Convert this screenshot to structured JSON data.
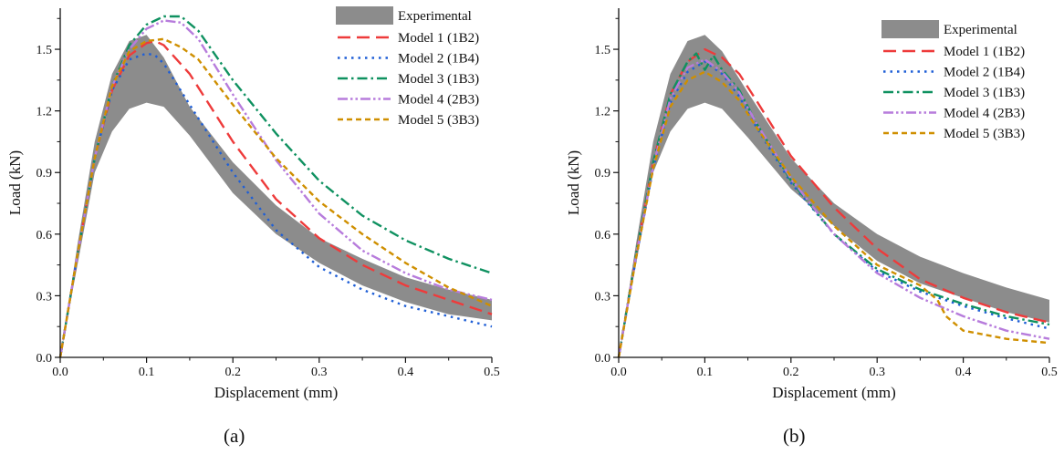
{
  "captions": [
    "(a)",
    "(b)"
  ],
  "legend_labels": {
    "experimental": "Experimental",
    "m1": "Model 1 (1B2)",
    "m2": "Model 2 (1B4)",
    "m3": "Model 3 (1B3)",
    "m4": "Model 4 (2B3)",
    "m5": "Model 5 (3B3)"
  },
  "colors": {
    "experimental": "#8c8c8c",
    "m1": "#ee3b3b",
    "m2": "#1f5fd6",
    "m3": "#0f9160",
    "m4": "#b77cdc",
    "m5": "#cf8f00"
  },
  "chart_data": [
    {
      "type": "line",
      "panel": "(a)",
      "xlabel": "Displacement (mm)",
      "ylabel": "Load (kN)",
      "xlim": [
        0,
        0.5
      ],
      "ylim": [
        0,
        1.7
      ],
      "xticks": [
        "0.0",
        "0.1",
        "0.2",
        "0.3",
        "0.4",
        "0.5"
      ],
      "yticks": [
        "0.0",
        "0.3",
        "0.6",
        "0.9",
        "1.2",
        "1.5"
      ],
      "legend": "top-right",
      "experimental_band": {
        "name": "Experimental",
        "x": [
          0,
          0.02,
          0.04,
          0.06,
          0.08,
          0.1,
          0.12,
          0.15,
          0.2,
          0.25,
          0.3,
          0.35,
          0.4,
          0.45,
          0.5
        ],
        "upper": [
          0,
          0.55,
          1.05,
          1.38,
          1.54,
          1.57,
          1.46,
          1.22,
          0.95,
          0.74,
          0.58,
          0.48,
          0.39,
          0.33,
          0.28
        ],
        "lower": [
          0,
          0.45,
          0.9,
          1.1,
          1.21,
          1.24,
          1.22,
          1.08,
          0.8,
          0.6,
          0.46,
          0.35,
          0.27,
          0.21,
          0.18
        ]
      },
      "series": [
        {
          "name": "Model 1 (1B2)",
          "key": "m1",
          "x": [
            0,
            0.02,
            0.04,
            0.06,
            0.08,
            0.1,
            0.11,
            0.12,
            0.15,
            0.2,
            0.25,
            0.3,
            0.35,
            0.4,
            0.45,
            0.5
          ],
          "y": [
            0,
            0.5,
            0.97,
            1.3,
            1.47,
            1.53,
            1.54,
            1.52,
            1.38,
            1.05,
            0.77,
            0.58,
            0.45,
            0.35,
            0.28,
            0.21
          ]
        },
        {
          "name": "Model 2 (1B4)",
          "key": "m2",
          "x": [
            0,
            0.02,
            0.04,
            0.06,
            0.08,
            0.1,
            0.11,
            0.12,
            0.15,
            0.2,
            0.25,
            0.3,
            0.35,
            0.4,
            0.45,
            0.5
          ],
          "y": [
            0,
            0.5,
            0.97,
            1.3,
            1.45,
            1.48,
            1.47,
            1.43,
            1.23,
            0.9,
            0.62,
            0.44,
            0.33,
            0.25,
            0.2,
            0.15
          ]
        },
        {
          "name": "Model 3 (1B3)",
          "key": "m3",
          "x": [
            0,
            0.02,
            0.04,
            0.06,
            0.08,
            0.1,
            0.12,
            0.14,
            0.16,
            0.2,
            0.25,
            0.3,
            0.35,
            0.4,
            0.45,
            0.5
          ],
          "y": [
            0,
            0.5,
            0.97,
            1.32,
            1.52,
            1.62,
            1.66,
            1.66,
            1.59,
            1.35,
            1.09,
            0.86,
            0.69,
            0.57,
            0.48,
            0.41
          ]
        },
        {
          "name": "Model 4 (2B3)",
          "key": "m4",
          "x": [
            0,
            0.02,
            0.04,
            0.06,
            0.08,
            0.1,
            0.12,
            0.14,
            0.16,
            0.2,
            0.25,
            0.3,
            0.35,
            0.4,
            0.45,
            0.5
          ],
          "y": [
            0,
            0.5,
            0.97,
            1.32,
            1.5,
            1.6,
            1.64,
            1.63,
            1.55,
            1.28,
            0.96,
            0.7,
            0.52,
            0.41,
            0.33,
            0.28
          ]
        },
        {
          "name": "Model 5 (3B3)",
          "key": "m5",
          "x": [
            0,
            0.02,
            0.04,
            0.06,
            0.08,
            0.1,
            0.12,
            0.14,
            0.16,
            0.2,
            0.25,
            0.3,
            0.35,
            0.4,
            0.45,
            0.5
          ],
          "y": [
            0,
            0.5,
            0.97,
            1.32,
            1.49,
            1.54,
            1.55,
            1.51,
            1.45,
            1.23,
            0.97,
            0.76,
            0.6,
            0.46,
            0.34,
            0.25
          ]
        }
      ]
    },
    {
      "type": "line",
      "panel": "(b)",
      "xlabel": "Displacement (mm)",
      "ylabel": "Load (kN)",
      "xlim": [
        0,
        0.5
      ],
      "ylim": [
        0,
        1.7
      ],
      "xticks": [
        "0.0",
        "0.1",
        "0.2",
        "0.3",
        "0.4",
        "0.5"
      ],
      "yticks": [
        "0.0",
        "0.3",
        "0.6",
        "0.9",
        "1.2",
        "1.5"
      ],
      "legend": "top-right",
      "experimental_band": {
        "name": "Experimental",
        "x": [
          0,
          0.02,
          0.04,
          0.06,
          0.08,
          0.1,
          0.12,
          0.15,
          0.2,
          0.25,
          0.3,
          0.35,
          0.4,
          0.45,
          0.5
        ],
        "upper": [
          0,
          0.55,
          1.05,
          1.38,
          1.54,
          1.57,
          1.49,
          1.29,
          0.97,
          0.75,
          0.6,
          0.49,
          0.41,
          0.34,
          0.28
        ],
        "lower": [
          0,
          0.45,
          0.9,
          1.1,
          1.21,
          1.24,
          1.21,
          1.07,
          0.82,
          0.64,
          0.47,
          0.36,
          0.29,
          0.22,
          0.17
        ]
      },
      "series": [
        {
          "name": "Model 1 (1B2)",
          "key": "m1",
          "x": [
            0,
            0.02,
            0.04,
            0.06,
            0.08,
            0.1,
            0.12,
            0.14,
            0.16,
            0.2,
            0.25,
            0.3,
            0.35,
            0.4,
            0.45,
            0.5
          ],
          "y": [
            0,
            0.5,
            0.95,
            1.28,
            1.44,
            1.5,
            1.46,
            1.38,
            1.25,
            0.98,
            0.73,
            0.53,
            0.38,
            0.29,
            0.22,
            0.17
          ]
        },
        {
          "name": "Model 2 (1B4)",
          "key": "m2",
          "x": [
            0,
            0.02,
            0.04,
            0.06,
            0.08,
            0.1,
            0.12,
            0.14,
            0.16,
            0.2,
            0.25,
            0.3,
            0.35,
            0.4,
            0.45,
            0.5
          ],
          "y": [
            0,
            0.48,
            0.92,
            1.24,
            1.39,
            1.44,
            1.38,
            1.27,
            1.12,
            0.85,
            0.6,
            0.42,
            0.32,
            0.25,
            0.19,
            0.14
          ]
        },
        {
          "name": "Model 3 (1B3)",
          "key": "m3",
          "x": [
            0,
            0.02,
            0.04,
            0.06,
            0.08,
            0.09,
            0.1,
            0.11,
            0.12,
            0.14,
            0.16,
            0.2,
            0.25,
            0.3,
            0.35,
            0.4,
            0.45,
            0.5
          ],
          "y": [
            0,
            0.5,
            0.95,
            1.28,
            1.44,
            1.48,
            1.4,
            1.47,
            1.4,
            1.3,
            1.14,
            0.86,
            0.6,
            0.43,
            0.33,
            0.26,
            0.2,
            0.16
          ]
        },
        {
          "name": "Model 4 (2B3)",
          "key": "m4",
          "x": [
            0,
            0.02,
            0.04,
            0.06,
            0.08,
            0.1,
            0.12,
            0.14,
            0.16,
            0.2,
            0.25,
            0.3,
            0.35,
            0.4,
            0.45,
            0.5
          ],
          "y": [
            0,
            0.49,
            0.93,
            1.26,
            1.41,
            1.45,
            1.39,
            1.29,
            1.14,
            0.87,
            0.6,
            0.41,
            0.29,
            0.2,
            0.13,
            0.09
          ]
        },
        {
          "name": "Model 5 (3B3)",
          "key": "m5",
          "x": [
            0,
            0.02,
            0.04,
            0.06,
            0.08,
            0.1,
            0.12,
            0.14,
            0.16,
            0.2,
            0.25,
            0.3,
            0.35,
            0.37,
            0.38,
            0.4,
            0.45,
            0.5
          ],
          "y": [
            0,
            0.48,
            0.92,
            1.22,
            1.35,
            1.39,
            1.34,
            1.25,
            1.12,
            0.88,
            0.64,
            0.45,
            0.35,
            0.28,
            0.2,
            0.13,
            0.09,
            0.07
          ]
        }
      ]
    }
  ]
}
